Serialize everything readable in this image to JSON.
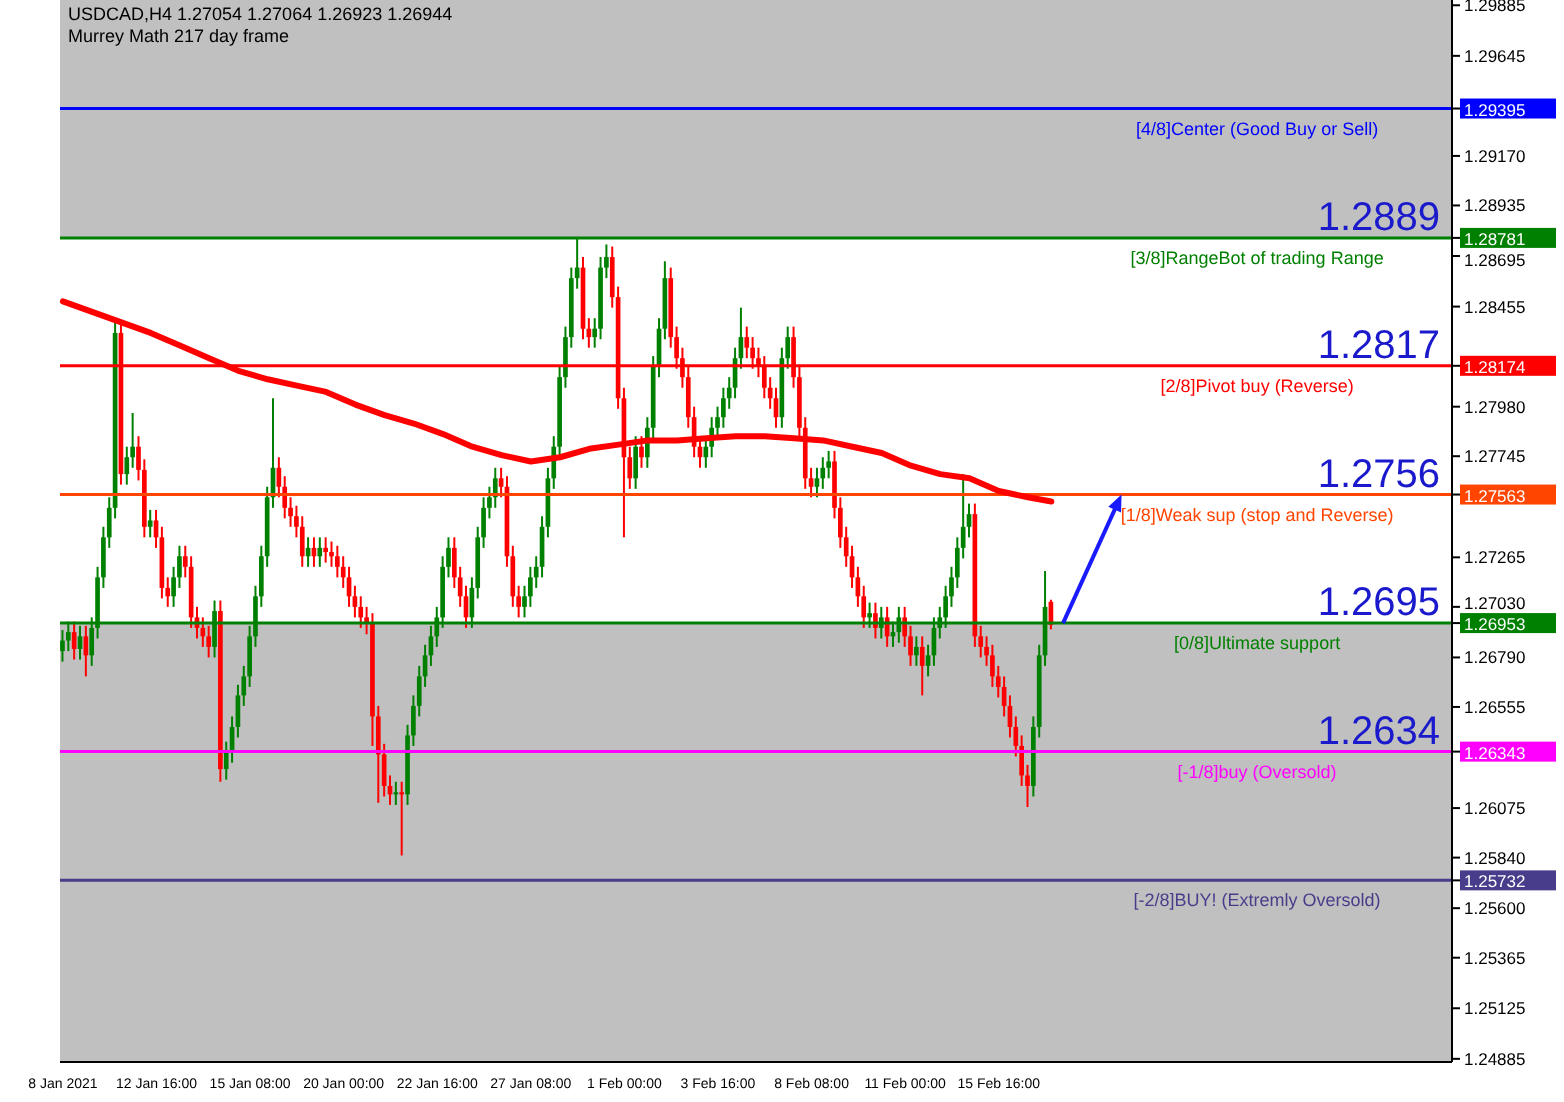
{
  "chart_data": {
    "type": "candlestick",
    "title": "USDCAD,H4  1.27054 1.27064 1.26923 1.26944",
    "subtitle": "Murrey Math 217 day frame",
    "categories": [
      "8 Jan 2021",
      null,
      null,
      null,
      null,
      null,
      null,
      null,
      null,
      null,
      null,
      null,
      null,
      null,
      null,
      null,
      "12 Jan 16:00",
      null,
      null,
      null,
      null,
      null,
      null,
      null,
      null,
      null,
      null,
      null,
      null,
      null,
      null,
      null,
      "15 Jan 08:00",
      null,
      null,
      null,
      null,
      null,
      null,
      null,
      null,
      null,
      null,
      null,
      null,
      null,
      null,
      null,
      "20 Jan 00:00",
      null,
      null,
      null,
      null,
      null,
      null,
      null,
      null,
      null,
      null,
      null,
      null,
      null,
      null,
      null,
      "22 Jan 16:00",
      null,
      null,
      null,
      null,
      null,
      null,
      null,
      null,
      null,
      null,
      null,
      null,
      null,
      null,
      null,
      "27 Jan 08:00",
      null,
      null,
      null,
      null,
      null,
      null,
      null,
      null,
      null,
      null,
      null,
      null,
      null,
      null,
      null,
      "1 Feb 00:00",
      null,
      null,
      null,
      null,
      null,
      null,
      null,
      null,
      null,
      null,
      null,
      null,
      null,
      null,
      null,
      "3 Feb 16:00",
      null,
      null,
      null,
      null,
      null,
      null,
      null,
      null,
      null,
      null,
      null,
      null,
      null,
      null,
      null,
      "8 Feb 08:00",
      null,
      null,
      null,
      null,
      null,
      null,
      null,
      null,
      null,
      null,
      null,
      null,
      null,
      null,
      null,
      "11 Feb 00:00",
      null,
      null,
      null,
      null,
      null,
      null,
      null,
      null,
      null,
      null,
      null,
      null,
      null,
      null,
      null,
      "15 Feb 16:00",
      null,
      null,
      null,
      null,
      null,
      null,
      null,
      null,
      null,
      null,
      null,
      null,
      null,
      null,
      null,
      null,
      null,
      null,
      null,
      null,
      null,
      null,
      null,
      null,
      null,
      null,
      null,
      null,
      null,
      null,
      null,
      null,
      null,
      null,
      null,
      null,
      null,
      null,
      null,
      null,
      null,
      null,
      null,
      null,
      null,
      null,
      null,
      null,
      null,
      null,
      null,
      null,
      null,
      null,
      null,
      null,
      null,
      null,
      null,
      null,
      null,
      null,
      null,
      null,
      null,
      null,
      null,
      null,
      null,
      null,
      null,
      null,
      null,
      null,
      null,
      null,
      null
    ],
    "ohlc": [
      [
        1.2682,
        1.2692,
        1.2677,
        1.2687
      ],
      [
        1.2687,
        1.2696,
        1.2682,
        1.2691
      ],
      [
        1.2691,
        1.2696,
        1.2678,
        1.2683
      ],
      [
        1.2683,
        1.2694,
        1.2678,
        1.2689
      ],
      [
        1.2689,
        1.2694,
        1.267,
        1.268
      ],
      [
        1.268,
        1.2698,
        1.2675,
        1.2693
      ],
      [
        1.2693,
        1.2722,
        1.2688,
        1.2717
      ],
      [
        1.2717,
        1.2741,
        1.2712,
        1.2736
      ],
      [
        1.2736,
        1.2755,
        1.2731,
        1.275
      ],
      [
        1.275,
        1.284,
        1.2745,
        1.2833
      ],
      [
        1.2833,
        1.2838,
        1.2761,
        1.2766
      ],
      [
        1.2766,
        1.2779,
        1.2761,
        1.2774
      ],
      [
        1.2774,
        1.2795,
        1.2769,
        1.2779
      ],
      [
        1.2779,
        1.2784,
        1.2763,
        1.2768
      ],
      [
        1.2768,
        1.2773,
        1.2736,
        1.2741
      ],
      [
        1.2741,
        1.2749,
        1.2736,
        1.2744
      ],
      [
        1.2744,
        1.2749,
        1.2731,
        1.2736
      ],
      [
        1.2736,
        1.2741,
        1.2707,
        1.2712
      ],
      [
        1.2712,
        1.2717,
        1.2703,
        1.2708
      ],
      [
        1.2708,
        1.2722,
        1.2703,
        1.2717
      ],
      [
        1.2717,
        1.2732,
        1.2712,
        1.2727
      ],
      [
        1.2727,
        1.2732,
        1.2717,
        1.2722
      ],
      [
        1.2722,
        1.2727,
        1.2693,
        1.2698
      ],
      [
        1.2698,
        1.2703,
        1.2688,
        1.2693
      ],
      [
        1.2693,
        1.2698,
        1.2684,
        1.2689
      ],
      [
        1.2689,
        1.2694,
        1.2679,
        1.2684
      ],
      [
        1.2684,
        1.2706,
        1.2679,
        1.2701
      ],
      [
        1.2701,
        1.2706,
        1.262,
        1.2626
      ],
      [
        1.2626,
        1.2639,
        1.2621,
        1.2634
      ],
      [
        1.2634,
        1.2651,
        1.2629,
        1.2646
      ],
      [
        1.2646,
        1.2666,
        1.2641,
        1.2661
      ],
      [
        1.2661,
        1.2675,
        1.2656,
        1.267
      ],
      [
        1.267,
        1.2694,
        1.2665,
        1.2689
      ],
      [
        1.2689,
        1.2713,
        1.2684,
        1.2708
      ],
      [
        1.2708,
        1.2732,
        1.2703,
        1.2727
      ],
      [
        1.2727,
        1.276,
        1.2722,
        1.2755
      ],
      [
        1.2755,
        1.2802,
        1.275,
        1.2769
      ],
      [
        1.2769,
        1.2774,
        1.2755,
        1.276
      ],
      [
        1.276,
        1.2765,
        1.2745,
        1.275
      ],
      [
        1.275,
        1.2755,
        1.2741,
        1.2746
      ],
      [
        1.2746,
        1.2751,
        1.2736,
        1.2741
      ],
      [
        1.2741,
        1.2746,
        1.2722,
        1.2727
      ],
      [
        1.2727,
        1.2736,
        1.2722,
        1.2731
      ],
      [
        1.2731,
        1.2736,
        1.2722,
        1.2727
      ],
      [
        1.2727,
        1.2736,
        1.2722,
        1.2731
      ],
      [
        1.2731,
        1.2736,
        1.2724,
        1.2729
      ],
      [
        1.2729,
        1.2734,
        1.2722,
        1.2727
      ],
      [
        1.2727,
        1.2732,
        1.2717,
        1.2722
      ],
      [
        1.2722,
        1.2727,
        1.2712,
        1.2717
      ],
      [
        1.2717,
        1.2722,
        1.2703,
        1.2708
      ],
      [
        1.2708,
        1.2713,
        1.2698,
        1.2703
      ],
      [
        1.2703,
        1.2708,
        1.2693,
        1.2698
      ],
      [
        1.2698,
        1.2703,
        1.269,
        1.2695
      ],
      [
        1.2695,
        1.27,
        1.2637,
        1.2651
      ],
      [
        1.2651,
        1.2656,
        1.261,
        1.2633
      ],
      [
        1.2633,
        1.2638,
        1.2613,
        1.2618
      ],
      [
        1.2618,
        1.2623,
        1.2609,
        1.2614
      ],
      [
        1.2614,
        1.262,
        1.2609,
        1.2615
      ],
      [
        1.2615,
        1.262,
        1.2585,
        1.2614
      ],
      [
        1.2614,
        1.2647,
        1.2609,
        1.2642
      ],
      [
        1.2642,
        1.2661,
        1.2637,
        1.2656
      ],
      [
        1.2656,
        1.2675,
        1.2651,
        1.267
      ],
      [
        1.267,
        1.2685,
        1.2665,
        1.268
      ],
      [
        1.268,
        1.2694,
        1.2675,
        1.2689
      ],
      [
        1.2689,
        1.2703,
        1.2684,
        1.2698
      ],
      [
        1.2698,
        1.2727,
        1.2693,
        1.2722
      ],
      [
        1.2722,
        1.2736,
        1.2717,
        1.2731
      ],
      [
        1.2731,
        1.2736,
        1.2712,
        1.2717
      ],
      [
        1.2717,
        1.2722,
        1.2703,
        1.2708
      ],
      [
        1.2708,
        1.2713,
        1.2693,
        1.2698
      ],
      [
        1.2698,
        1.2717,
        1.2693,
        1.2712
      ],
      [
        1.2712,
        1.2741,
        1.2707,
        1.2736
      ],
      [
        1.2736,
        1.2755,
        1.2731,
        1.275
      ],
      [
        1.275,
        1.276,
        1.2745,
        1.2755
      ],
      [
        1.2755,
        1.2769,
        1.275,
        1.2764
      ],
      [
        1.2764,
        1.2769,
        1.2755,
        1.276
      ],
      [
        1.276,
        1.2765,
        1.2722,
        1.2727
      ],
      [
        1.2727,
        1.2732,
        1.2703,
        1.2708
      ],
      [
        1.2708,
        1.2713,
        1.2698,
        1.2703
      ],
      [
        1.2703,
        1.2713,
        1.2698,
        1.2708
      ],
      [
        1.2708,
        1.2722,
        1.2703,
        1.2717
      ],
      [
        1.2717,
        1.2727,
        1.2712,
        1.2722
      ],
      [
        1.2722,
        1.2746,
        1.2717,
        1.2741
      ],
      [
        1.2741,
        1.2769,
        1.2736,
        1.2764
      ],
      [
        1.2764,
        1.2784,
        1.2759,
        1.2779
      ],
      [
        1.2779,
        1.2817,
        1.2774,
        1.2812
      ],
      [
        1.2812,
        1.2836,
        1.2807,
        1.2831
      ],
      [
        1.2831,
        1.2864,
        1.2826,
        1.2859
      ],
      [
        1.2859,
        1.2878,
        1.2854,
        1.2864
      ],
      [
        1.2864,
        1.2869,
        1.283,
        1.2835
      ],
      [
        1.2835,
        1.284,
        1.2826,
        1.2831
      ],
      [
        1.2831,
        1.284,
        1.2826,
        1.2835
      ],
      [
        1.2835,
        1.2869,
        1.283,
        1.2864
      ],
      [
        1.2864,
        1.2875,
        1.2859,
        1.2869
      ],
      [
        1.2869,
        1.2874,
        1.2845,
        1.285
      ],
      [
        1.285,
        1.2855,
        1.2797,
        1.2802
      ],
      [
        1.2802,
        1.2807,
        1.2736,
        1.2774
      ],
      [
        1.2774,
        1.2779,
        1.2759,
        1.2764
      ],
      [
        1.2764,
        1.2784,
        1.2759,
        1.2779
      ],
      [
        1.2779,
        1.2784,
        1.2769,
        1.2774
      ],
      [
        1.2774,
        1.2793,
        1.2769,
        1.2788
      ],
      [
        1.2788,
        1.2822,
        1.2783,
        1.2817
      ],
      [
        1.2817,
        1.284,
        1.2812,
        1.2835
      ],
      [
        1.2835,
        1.2867,
        1.283,
        1.2859
      ],
      [
        1.2859,
        1.2864,
        1.2826,
        1.2831
      ],
      [
        1.2831,
        1.2836,
        1.2816,
        1.2821
      ],
      [
        1.2821,
        1.2826,
        1.2807,
        1.2812
      ],
      [
        1.2812,
        1.2817,
        1.2788,
        1.2793
      ],
      [
        1.2793,
        1.2798,
        1.2774,
        1.2779
      ],
      [
        1.2779,
        1.2784,
        1.2769,
        1.2774
      ],
      [
        1.2774,
        1.2784,
        1.2769,
        1.2779
      ],
      [
        1.2779,
        1.2793,
        1.2774,
        1.2788
      ],
      [
        1.2788,
        1.2798,
        1.2783,
        1.2793
      ],
      [
        1.2793,
        1.2807,
        1.2788,
        1.2802
      ],
      [
        1.2802,
        1.2812,
        1.2797,
        1.2807
      ],
      [
        1.2807,
        1.2826,
        1.2802,
        1.2821
      ],
      [
        1.2821,
        1.2845,
        1.2816,
        1.2831
      ],
      [
        1.2831,
        1.2836,
        1.2821,
        1.2826
      ],
      [
        1.2826,
        1.2831,
        1.2816,
        1.2821
      ],
      [
        1.2821,
        1.2826,
        1.2812,
        1.2817
      ],
      [
        1.2817,
        1.2822,
        1.2802,
        1.2807
      ],
      [
        1.2807,
        1.2812,
        1.2797,
        1.2802
      ],
      [
        1.2802,
        1.2807,
        1.2788,
        1.2793
      ],
      [
        1.2793,
        1.2826,
        1.2788,
        1.2821
      ],
      [
        1.2821,
        1.2836,
        1.2816,
        1.2831
      ],
      [
        1.2831,
        1.2836,
        1.2807,
        1.2812
      ],
      [
        1.2812,
        1.2817,
        1.2783,
        1.2788
      ],
      [
        1.2788,
        1.2793,
        1.2759,
        1.2764
      ],
      [
        1.2764,
        1.2769,
        1.2755,
        1.276
      ],
      [
        1.276,
        1.2769,
        1.2755,
        1.2764
      ],
      [
        1.2764,
        1.2774,
        1.2759,
        1.2769
      ],
      [
        1.2769,
        1.2777,
        1.2764,
        1.2772
      ],
      [
        1.2772,
        1.2777,
        1.2745,
        1.275
      ],
      [
        1.275,
        1.2755,
        1.2731,
        1.2736
      ],
      [
        1.2736,
        1.2741,
        1.2722,
        1.2727
      ],
      [
        1.2727,
        1.2732,
        1.2712,
        1.2717
      ],
      [
        1.2717,
        1.2722,
        1.2703,
        1.2708
      ],
      [
        1.2708,
        1.2713,
        1.2693,
        1.2698
      ],
      [
        1.2698,
        1.2705,
        1.2693,
        1.27
      ],
      [
        1.27,
        1.2705,
        1.2688,
        1.2693
      ],
      [
        1.2693,
        1.2703,
        1.2688,
        1.2698
      ],
      [
        1.2698,
        1.2703,
        1.2684,
        1.2689
      ],
      [
        1.2689,
        1.2696,
        1.2684,
        1.2691
      ],
      [
        1.2691,
        1.2703,
        1.2686,
        1.2698
      ],
      [
        1.2698,
        1.2703,
        1.2684,
        1.2689
      ],
      [
        1.2689,
        1.2694,
        1.2675,
        1.268
      ],
      [
        1.268,
        1.2689,
        1.2675,
        1.2684
      ],
      [
        1.2684,
        1.2689,
        1.2661,
        1.2675
      ],
      [
        1.2675,
        1.2685,
        1.267,
        1.268
      ],
      [
        1.268,
        1.2698,
        1.2675,
        1.2693
      ],
      [
        1.2693,
        1.2703,
        1.2688,
        1.2698
      ],
      [
        1.2698,
        1.2713,
        1.2693,
        1.2708
      ],
      [
        1.2708,
        1.2722,
        1.2703,
        1.2717
      ],
      [
        1.2717,
        1.2736,
        1.2712,
        1.2731
      ],
      [
        1.2731,
        1.2766,
        1.2726,
        1.2741
      ],
      [
        1.2741,
        1.2752,
        1.2736,
        1.2747
      ],
      [
        1.2747,
        1.2752,
        1.2684,
        1.2689
      ],
      [
        1.2689,
        1.2694,
        1.2679,
        1.2684
      ],
      [
        1.2684,
        1.2689,
        1.2675,
        1.268
      ],
      [
        1.268,
        1.2685,
        1.2665,
        1.267
      ],
      [
        1.267,
        1.2675,
        1.266,
        1.2665
      ],
      [
        1.2665,
        1.267,
        1.2651,
        1.2656
      ],
      [
        1.2656,
        1.2661,
        1.2641,
        1.2646
      ],
      [
        1.2646,
        1.2651,
        1.2632,
        1.2637
      ],
      [
        1.2637,
        1.2642,
        1.2618,
        1.2623
      ],
      [
        1.2623,
        1.2628,
        1.2608,
        1.2618
      ],
      [
        1.2618,
        1.2651,
        1.2613,
        1.2646
      ],
      [
        1.2646,
        1.2685,
        1.2641,
        1.268
      ],
      [
        1.268,
        1.272,
        1.2675,
        1.2703
      ],
      [
        1.27054,
        1.27064,
        1.26923,
        1.26944
      ],
      null,
      null,
      null,
      null,
      null,
      null,
      null,
      null,
      null,
      null,
      null,
      null,
      null,
      null,
      null,
      null,
      null,
      null,
      null,
      null,
      null,
      null,
      null,
      null,
      null,
      null,
      null,
      null,
      null,
      null,
      null,
      null,
      null,
      null,
      null,
      null,
      null,
      null,
      null,
      null,
      null,
      null,
      null,
      null,
      null,
      null,
      null,
      null,
      null,
      null,
      null,
      null,
      null,
      null,
      null,
      null,
      null,
      null,
      null,
      null,
      null,
      null,
      null,
      null,
      null,
      null,
      null,
      null
    ],
    "series": [
      {
        "type": "line",
        "color": "#ff0000",
        "values": [
          1.2848,
          null,
          null,
          null,
          null,
          1.2843,
          null,
          null,
          null,
          null,
          1.2838,
          null,
          null,
          null,
          null,
          1.2833,
          null,
          null,
          null,
          null,
          1.2827,
          null,
          null,
          null,
          null,
          1.2821,
          null,
          null,
          null,
          null,
          1.2815,
          null,
          null,
          null,
          null,
          1.2811,
          null,
          null,
          null,
          null,
          1.2808,
          null,
          null,
          null,
          null,
          1.2805,
          null,
          null,
          null,
          null,
          1.2799,
          null,
          null,
          null,
          null,
          1.2794,
          null,
          null,
          null,
          null,
          1.279,
          null,
          null,
          null,
          null,
          1.2785,
          null,
          null,
          null,
          null,
          1.2779,
          null,
          null,
          null,
          null,
          1.2775,
          null,
          null,
          null,
          null,
          1.2772,
          null,
          null,
          null,
          null,
          1.2774,
          null,
          null,
          null,
          null,
          1.2778,
          null,
          null,
          null,
          null,
          1.278,
          null,
          null,
          null,
          null,
          1.2782,
          null,
          null,
          null,
          null,
          1.2782,
          null,
          null,
          null,
          null,
          1.2783,
          null,
          null,
          null,
          null,
          1.2784,
          null,
          null,
          null,
          null,
          1.2784,
          null,
          null,
          null,
          null,
          1.2783,
          null,
          null,
          null,
          null,
          1.2782,
          null,
          null,
          null,
          null,
          1.2779,
          null,
          null,
          null,
          null,
          1.2776,
          null,
          null,
          null,
          null,
          1.277,
          null,
          null,
          null,
          null,
          1.2766,
          null,
          null,
          null,
          null,
          1.2764,
          null,
          null,
          null,
          null,
          1.2758,
          null,
          null,
          null,
          null,
          1.2755,
          null,
          null,
          null,
          1.2753,
          null,
          null,
          null,
          null,
          null,
          null,
          null,
          null,
          null,
          null,
          null,
          null,
          null,
          null,
          null,
          null,
          null,
          null,
          null,
          null,
          null,
          null,
          null,
          null,
          null,
          null,
          null,
          null,
          null,
          null,
          null,
          null,
          null,
          null,
          null,
          null,
          null,
          null,
          null,
          null,
          null,
          null,
          null,
          null,
          null,
          null,
          null,
          null,
          null,
          null,
          null,
          null,
          null,
          null,
          null,
          null,
          null,
          null,
          null,
          null,
          null,
          null,
          null,
          null,
          null,
          null,
          null,
          null
        ]
      }
    ],
    "ylim": [
      1.2487,
      1.2991
    ],
    "yticks": [
      1.29885,
      1.29645,
      1.29395,
      {
        "value": 1.2917,
        "label": "1.29170"
      },
      1.28935,
      1.28781,
      1.28695,
      1.28455,
      1.28174,
      {
        "value": 1.2798,
        "label": "1.27980"
      },
      1.27745,
      1.27563,
      1.27265,
      {
        "value": 1.2703,
        "label": "1.27030"
      },
      1.26953,
      {
        "value": 1.2679,
        "label": "1.26790"
      },
      1.26555,
      1.26343,
      1.26075,
      {
        "value": 1.2584,
        "label": "1.25840"
      },
      1.25732,
      {
        "value": 1.256,
        "label": "1.25600"
      },
      1.25365,
      1.25125,
      1.24885
    ],
    "ref_lines": [
      {
        "axis": "y",
        "value": 1.29395,
        "label": "[4/8]Center (Good Buy or Sell)",
        "color": "#0000ff"
      },
      {
        "axis": "y",
        "value": 1.28781,
        "label": "[3/8]RangeBot of trading Range",
        "color": "#008000"
      },
      {
        "axis": "y",
        "value": 1.28174,
        "label": "[2/8]Pivot buy (Reverse)",
        "color": "#ff0000"
      },
      {
        "axis": "y",
        "value": 1.27563,
        "label": "[1/8]Weak sup (stop and Reverse)",
        "color": "#ff4500"
      },
      {
        "axis": "y",
        "value": 1.26953,
        "label": "[0/8]Ultimate support",
        "color": "#008000"
      },
      {
        "axis": "y",
        "value": 1.26343,
        "label": "[-1/8]buy (Oversold)",
        "color": "#ff00ff"
      },
      {
        "axis": "y",
        "value": 1.25732,
        "label": "[-2/8]BUY! (Extremly Oversold)",
        "color": "#483d8b"
      }
    ],
    "bands": [
      {
        "axis": "y",
        "from": 1.28781,
        "to": 1.2991,
        "color": "#c0c0c0"
      },
      {
        "axis": "y",
        "from": 1.2487,
        "to": 1.26953,
        "color": "#c0c0c0"
      }
    ],
    "annotations": [
      {
        "text": "1.2889",
        "y": 1.28781
      },
      {
        "text": "1.2817",
        "y": 1.28174
      },
      {
        "text": "1.2756",
        "y": 1.27563
      },
      {
        "text": "1.2695",
        "y": 1.26953
      },
      {
        "text": "1.2634",
        "y": 1.26343
      }
    ]
  }
}
